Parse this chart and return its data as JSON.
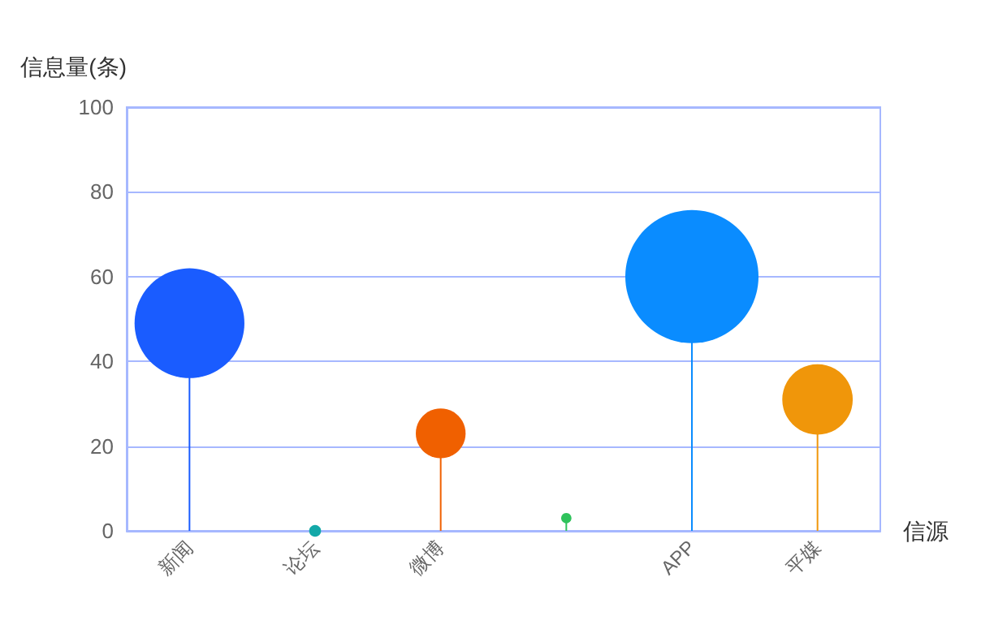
{
  "chart_data": {
    "type": "lollipop",
    "ylabel": "信息量(条)",
    "xlabel": "信源",
    "categories": [
      "新闻",
      "论坛",
      "微博",
      null,
      "APP",
      "平媒"
    ],
    "values": [
      49,
      0,
      23,
      3,
      60,
      31
    ],
    "sizes": [
      0.68,
      0.008,
      0.14,
      0.006,
      1,
      0.28
    ],
    "colors": [
      "#1a5cff",
      "#13a8a8",
      "#f06000",
      "#2fc25b",
      "#0a8cff",
      "#f0960a"
    ],
    "ylim": [
      0,
      100
    ],
    "yticks": [
      0,
      20,
      40,
      60,
      80,
      100
    ],
    "grid": "y",
    "marker": "circle"
  }
}
